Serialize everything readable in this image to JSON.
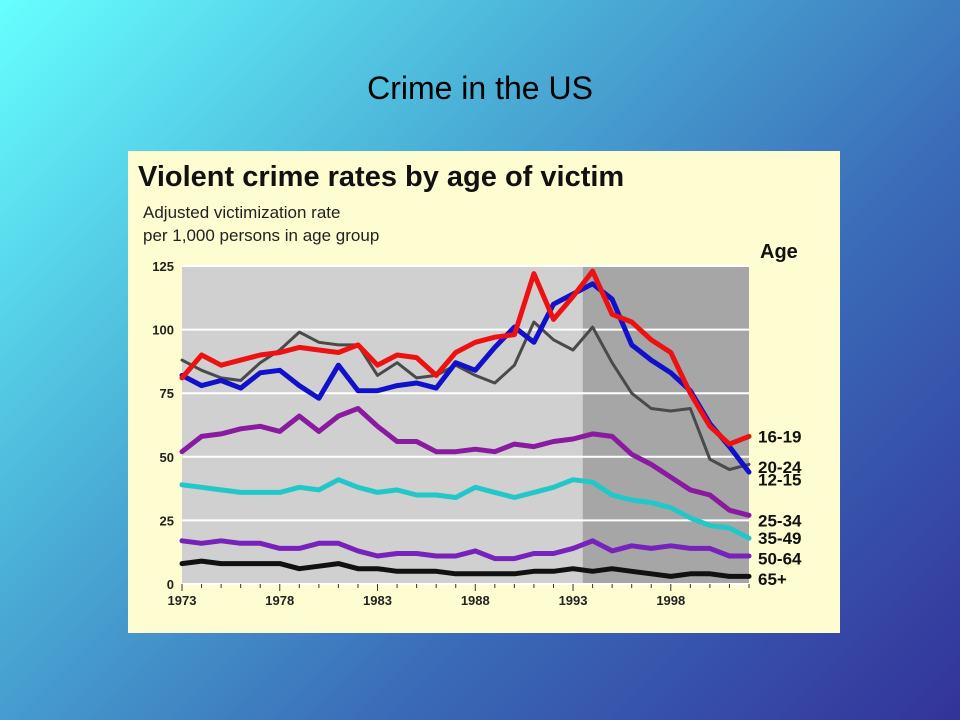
{
  "slide": {
    "title": "Crime in the US"
  },
  "chart_data": {
    "type": "line",
    "title": "Violent crime rates by age of victim",
    "subtitle_lines": [
      "Adjusted victimization rate",
      "per 1,000 persons in age group"
    ],
    "legend_title": "Age",
    "xlabel": "",
    "ylabel": "",
    "xlim": [
      1973,
      2002
    ],
    "ylim": [
      0,
      125
    ],
    "x_ticks": [
      1973,
      1978,
      1983,
      1988,
      1993,
      1998
    ],
    "y_ticks": [
      0,
      25,
      50,
      75,
      100,
      125
    ],
    "grid": "horizontal",
    "shaded_region_start": 1993.5,
    "x": [
      1973,
      1974,
      1975,
      1976,
      1977,
      1978,
      1979,
      1980,
      1981,
      1982,
      1983,
      1984,
      1985,
      1986,
      1987,
      1988,
      1989,
      1990,
      1991,
      1992,
      1993,
      1994,
      1995,
      1996,
      1997,
      1998,
      1999,
      2000,
      2001,
      2002
    ],
    "series": [
      {
        "name": "16-19",
        "color": "#ee1111",
        "width": 5,
        "label_y": 58,
        "values": [
          81,
          90,
          86,
          88,
          90,
          91,
          93,
          92,
          91,
          94,
          86,
          90,
          89,
          82,
          91,
          95,
          97,
          98,
          122,
          104,
          113,
          123,
          106,
          103,
          96,
          91,
          75,
          62,
          55,
          58
        ]
      },
      {
        "name": "20-24",
        "color": "#4a4a4a",
        "width": 3,
        "label_y": 46,
        "values": [
          88,
          84,
          81,
          80,
          87,
          92,
          99,
          95,
          94,
          94,
          82,
          87,
          81,
          82,
          86,
          82,
          79,
          86,
          103,
          96,
          92,
          101,
          87,
          75,
          69,
          68,
          69,
          49,
          45,
          47
        ]
      },
      {
        "name": "12-15",
        "color": "#1111cc",
        "width": 5,
        "label_y": 41,
        "values": [
          82,
          78,
          80,
          77,
          83,
          84,
          78,
          73,
          86,
          76,
          76,
          78,
          79,
          77,
          87,
          84,
          93,
          101,
          95,
          110,
          114,
          118,
          112,
          94,
          88,
          83,
          76,
          63,
          54,
          44
        ]
      },
      {
        "name": "25-34",
        "color": "#8a1aa0",
        "width": 5,
        "label_y": 25,
        "values": [
          52,
          58,
          59,
          61,
          62,
          60,
          66,
          60,
          66,
          69,
          62,
          56,
          56,
          52,
          52,
          53,
          52,
          55,
          54,
          56,
          57,
          59,
          58,
          51,
          47,
          42,
          37,
          35,
          29,
          27
        ]
      },
      {
        "name": "35-49",
        "color": "#22c8c8",
        "width": 5,
        "label_y": 18,
        "values": [
          39,
          38,
          37,
          36,
          36,
          36,
          38,
          37,
          41,
          38,
          36,
          37,
          35,
          35,
          34,
          38,
          36,
          34,
          36,
          38,
          41,
          40,
          35,
          33,
          32,
          30,
          26,
          23,
          22,
          18
        ]
      },
      {
        "name": "50-64",
        "color": "#7722bb",
        "width": 5,
        "label_y": 10,
        "values": [
          17,
          16,
          17,
          16,
          16,
          14,
          14,
          16,
          16,
          13,
          11,
          12,
          12,
          11,
          11,
          13,
          10,
          10,
          12,
          12,
          14,
          17,
          13,
          15,
          14,
          15,
          14,
          14,
          11,
          11
        ]
      },
      {
        "name": "65+",
        "color": "#111111",
        "width": 5,
        "label_y": 2,
        "values": [
          8,
          9,
          8,
          8,
          8,
          8,
          6,
          7,
          8,
          6,
          6,
          5,
          5,
          5,
          4,
          4,
          4,
          4,
          5,
          5,
          6,
          5,
          6,
          5,
          4,
          3,
          4,
          4,
          3,
          3
        ]
      }
    ]
  }
}
